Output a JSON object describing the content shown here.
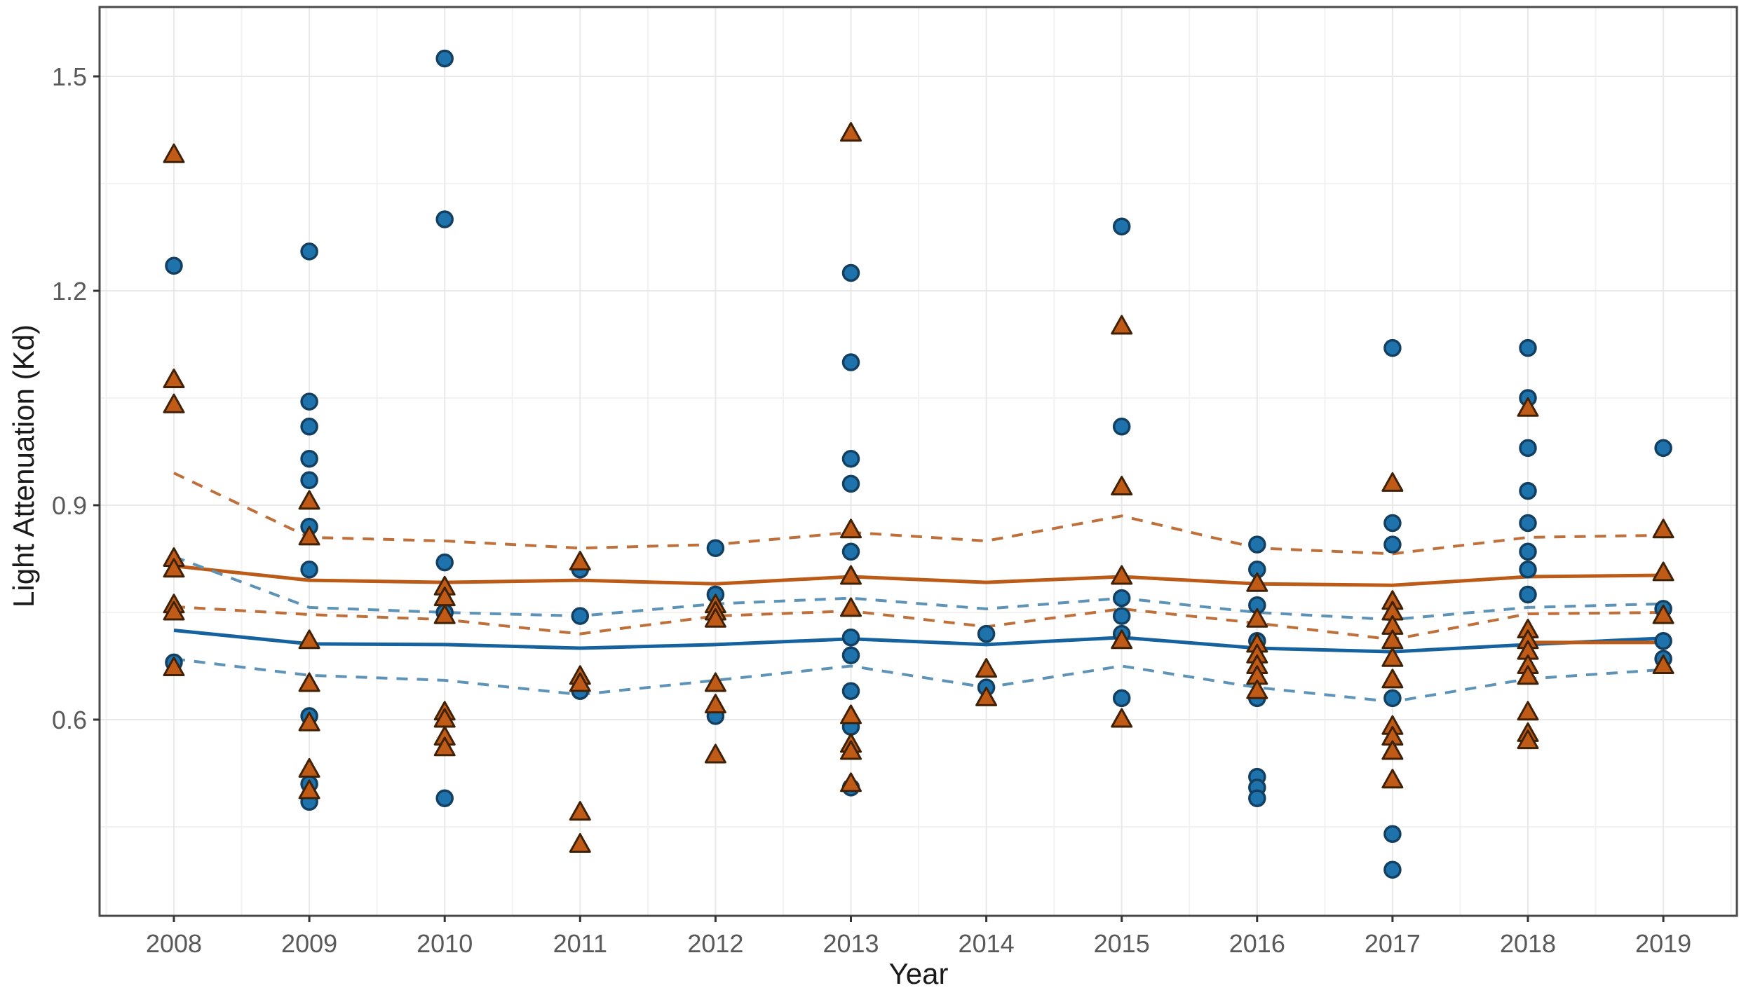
{
  "chart_data": {
    "type": "scatter",
    "title": "",
    "xlabel": "Year",
    "ylabel": "Light Attenuation (Kd)",
    "categories": [
      2008,
      2009,
      2010,
      2011,
      2012,
      2013,
      2014,
      2015,
      2016,
      2017,
      2018,
      2019
    ],
    "x_tick_labels": [
      "2008",
      "2009",
      "2010",
      "2011",
      "2012",
      "2013",
      "2014",
      "2015",
      "2016",
      "2017",
      "2018",
      "2019"
    ],
    "y_tick_labels": [
      "0.6",
      "0.9",
      "1.2",
      "1.5"
    ],
    "y_tick_values": [
      0.6,
      0.9,
      1.2,
      1.5
    ],
    "y_minor_grid_values": [
      0.45,
      0.75,
      1.05,
      1.35
    ],
    "ylim": [
      0.33,
      1.6
    ],
    "grid": true,
    "legend": "none",
    "colors": {
      "blue_marker_fill": "#1e73ad",
      "blue_marker_stroke": "#133f61",
      "orange_marker_fill": "#c05a17",
      "orange_marker_stroke": "#3f2206",
      "blue_line": "#16629e",
      "orange_line": "#bc5a17",
      "blue_dashed": "#5e93b8",
      "orange_dashed": "#bf703a",
      "panel_border": "#4a4a4a",
      "tick_text": "#595959",
      "title_text": "#1a1a1a",
      "grid_major": "#e9e9e9",
      "grid_minor": "#f4f2f1"
    },
    "series": [
      {
        "name": "blue-circles",
        "marker": "circle",
        "points_by_year": [
          [
            1.235,
            0.68
          ],
          [
            1.255,
            1.045,
            1.01,
            0.965,
            0.935,
            0.87,
            0.81,
            0.605,
            0.51,
            0.485
          ],
          [
            1.525,
            1.3,
            0.82,
            0.75,
            0.49
          ],
          [
            0.81,
            0.745,
            0.64
          ],
          [
            0.84,
            0.775,
            0.605
          ],
          [
            1.225,
            1.1,
            0.965,
            0.93,
            0.835,
            0.715,
            0.69,
            0.64,
            0.59,
            0.505
          ],
          [
            0.72,
            0.645
          ],
          [
            1.29,
            1.01,
            0.77,
            0.745,
            0.72,
            0.63
          ],
          [
            0.845,
            0.81,
            0.76,
            0.71,
            0.63,
            0.52,
            0.505,
            0.49
          ],
          [
            1.12,
            0.875,
            0.845,
            0.63,
            0.44,
            0.39
          ],
          [
            1.12,
            1.05,
            0.98,
            0.92,
            0.875,
            0.835,
            0.81,
            0.775
          ],
          [
            0.98,
            0.755,
            0.71,
            0.685
          ]
        ]
      },
      {
        "name": "orange-triangles",
        "marker": "triangle",
        "points_by_year": [
          [
            1.39,
            1.075,
            1.04,
            0.825,
            0.81,
            0.76,
            0.75,
            0.672
          ],
          [
            0.905,
            0.855,
            0.71,
            0.65,
            0.595,
            0.53,
            0.5
          ],
          [
            0.785,
            0.77,
            0.745,
            0.61,
            0.6,
            0.575,
            0.56
          ],
          [
            0.82,
            0.66,
            0.65,
            0.47,
            0.425
          ],
          [
            0.76,
            0.75,
            0.74,
            0.65,
            0.62,
            0.55
          ],
          [
            1.42,
            0.865,
            0.8,
            0.755,
            0.605,
            0.565,
            0.555,
            0.51
          ],
          [
            0.67,
            0.63
          ],
          [
            1.15,
            0.925,
            0.8,
            0.71,
            0.6
          ],
          [
            0.79,
            0.74,
            0.705,
            0.69,
            0.675,
            0.66,
            0.64
          ],
          [
            0.93,
            0.765,
            0.75,
            0.73,
            0.71,
            0.685,
            0.655,
            0.59,
            0.575,
            0.555,
            0.515
          ],
          [
            1.035,
            0.725,
            0.71,
            0.695,
            0.675,
            0.66,
            0.61,
            0.58,
            0.57
          ],
          [
            0.865,
            0.805,
            0.745,
            0.675
          ]
        ]
      }
    ],
    "trend_lines": [
      {
        "name": "orange-mean",
        "style": "solid",
        "color_key": "orange_line",
        "values": [
          0.815,
          0.795,
          0.792,
          0.795,
          0.79,
          0.8,
          0.792,
          0.8,
          0.79,
          0.788,
          0.8,
          0.802
        ]
      },
      {
        "name": "blue-mean",
        "style": "solid",
        "color_key": "blue_line",
        "values": [
          0.725,
          0.706,
          0.705,
          0.7,
          0.705,
          0.713,
          0.705,
          0.715,
          0.7,
          0.695,
          0.705,
          0.714
        ]
      },
      {
        "name": "orange-ci-upper",
        "style": "dashed",
        "color_key": "orange_dashed",
        "values": [
          0.945,
          0.855,
          0.85,
          0.84,
          0.845,
          0.862,
          0.85,
          0.885,
          0.84,
          0.832,
          0.855,
          0.858
        ]
      },
      {
        "name": "orange-ci-lower",
        "style": "dashed",
        "color_key": "orange_dashed",
        "values": [
          0.758,
          0.747,
          0.74,
          0.72,
          0.745,
          0.752,
          0.73,
          0.755,
          0.735,
          0.712,
          0.748,
          0.75
        ]
      },
      {
        "name": "blue-ci-upper",
        "style": "dashed",
        "color_key": "blue_dashed",
        "values": [
          0.828,
          0.757,
          0.75,
          0.745,
          0.762,
          0.77,
          0.755,
          0.77,
          0.75,
          0.74,
          0.757,
          0.762
        ]
      },
      {
        "name": "blue-ci-lower",
        "style": "dashed",
        "color_key": "blue_dashed",
        "values": [
          0.685,
          0.662,
          0.655,
          0.635,
          0.655,
          0.675,
          0.645,
          0.675,
          0.645,
          0.625,
          0.657,
          0.67
        ]
      }
    ],
    "extra_segments": [
      {
        "name": "orange-flat-segment",
        "style": "solid",
        "color_key": "orange_line",
        "years": [
          2018,
          2019
        ],
        "values": [
          0.708,
          0.708
        ]
      }
    ]
  }
}
